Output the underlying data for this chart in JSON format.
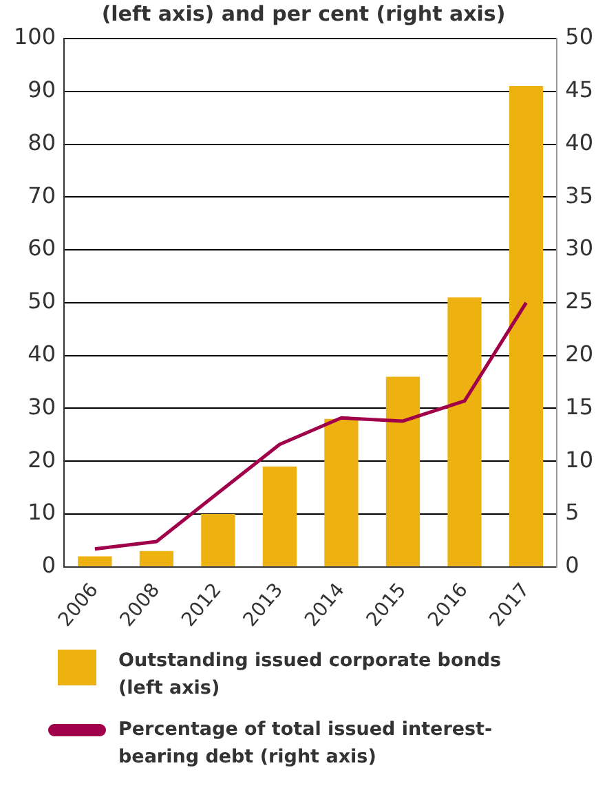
{
  "chart_data": {
    "type": "bar",
    "title": "(left axis) and per cent (right axis)",
    "categories": [
      "2006",
      "2008",
      "2012",
      "2013",
      "2014",
      "2015",
      "2016",
      "2017"
    ],
    "series": [
      {
        "name": "Outstanding issued corporate bonds (left axis)",
        "color": "#edb111",
        "values": [
          2,
          3,
          10,
          19,
          28,
          36,
          51,
          91
        ]
      },
      {
        "name": "Percentage of total issued interest-bearing debt (right axis)",
        "type": "line",
        "axis": "y2",
        "color": "#a0004a",
        "values": [
          1.7,
          2.4,
          7.0,
          11.6,
          14.1,
          13.8,
          15.7,
          25
        ]
      }
    ],
    "ylim": [
      0,
      100
    ],
    "yticks": [
      0,
      10,
      20,
      30,
      40,
      50,
      60,
      70,
      80,
      90,
      100
    ],
    "y2lim": [
      0,
      50
    ],
    "y2ticks": [
      0,
      5,
      10,
      15,
      20,
      25,
      30,
      35,
      40,
      45,
      50
    ],
    "grid": "y",
    "legend": "bottom",
    "marker": "none",
    "line_style": "solid"
  }
}
